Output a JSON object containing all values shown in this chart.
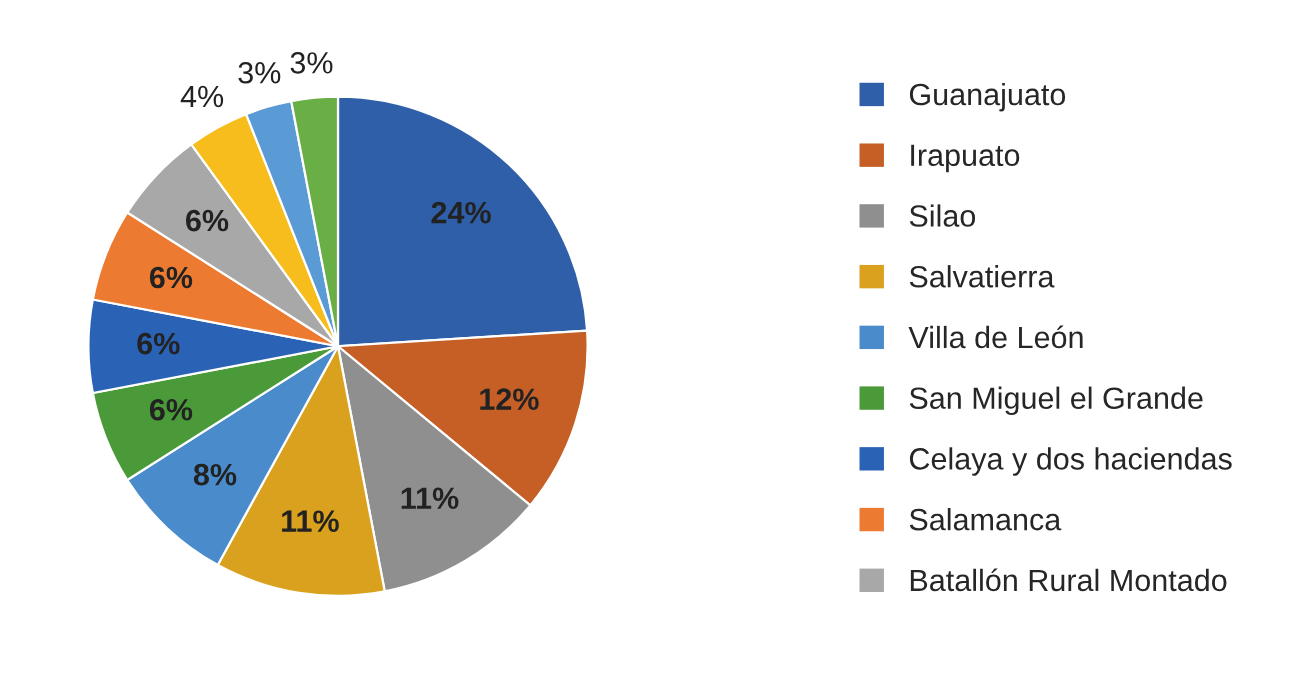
{
  "chart_data": {
    "type": "pie",
    "categories": [
      "Guanajuato",
      "Irapuato",
      "Silao",
      "Salvatierra",
      "Villa de León",
      "San Miguel el Grande",
      "Celaya y dos haciendas",
      "Salamanca",
      "Batallón Rural Montado",
      null,
      null,
      null
    ],
    "values": [
      24,
      12,
      11,
      11,
      8,
      6,
      6,
      6,
      6,
      4,
      3,
      3
    ],
    "value_labels": [
      "24%",
      "12%",
      "11%",
      "11%",
      "8%",
      "6%",
      "6%",
      "6%",
      "6%",
      "4%",
      "3%",
      "3%"
    ],
    "colors": [
      "#2e5fa8",
      "#c55f25",
      "#8f8f8f",
      "#d9a11d",
      "#4a8ccb",
      "#4b9a3a",
      "#2a62b5",
      "#ec7a31",
      "#a8a8a8",
      "#f7bd1c",
      "#5a9bd5",
      "#6aae46"
    ],
    "legend": "right"
  }
}
